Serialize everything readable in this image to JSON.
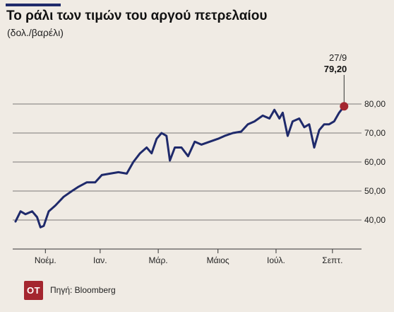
{
  "header": {
    "title": "Το ράλι των τιμών του αργού πετρελαίου",
    "subtitle": "(δολ./βαρέλι)"
  },
  "footer": {
    "logo": "ΟΤ",
    "source": "Πηγή: Bloomberg"
  },
  "colors": {
    "line": "#1f2a6b",
    "marker": "#a4262f",
    "grid": "#555555",
    "background": "#f0ebe4",
    "logo_bg": "#a4262f"
  },
  "chart_data": {
    "type": "line",
    "title": "Το ράλι των τιμών του αργού πετρελαίου",
    "ylabel": "(δολ./βαρέλι)",
    "ylim": [
      30,
      90
    ],
    "y_ticks": [
      40,
      50,
      60,
      70,
      80
    ],
    "y_tick_labels": [
      "40,00",
      "50,00",
      "60,00",
      "70,00",
      "80,00"
    ],
    "x_range": [
      0,
      1
    ],
    "x_ticks": [
      0.09,
      0.255,
      0.43,
      0.61,
      0.785,
      0.955
    ],
    "x_tick_labels": [
      "Νοέμ.",
      "Ιαν.",
      "Μάρ.",
      "Μάιος",
      "Ιούλ.",
      "Σεπτ."
    ],
    "grid": "horizontal",
    "annotation": {
      "date": "27/9",
      "value": "79,20",
      "y": 79.2
    },
    "series": [
      {
        "values": [
          [
            0.0,
            39.5
          ],
          [
            0.015,
            43
          ],
          [
            0.03,
            42
          ],
          [
            0.05,
            43
          ],
          [
            0.065,
            41
          ],
          [
            0.075,
            37.5
          ],
          [
            0.085,
            38
          ],
          [
            0.1,
            43
          ],
          [
            0.12,
            45
          ],
          [
            0.145,
            48
          ],
          [
            0.17,
            50
          ],
          [
            0.19,
            51.5
          ],
          [
            0.215,
            53
          ],
          [
            0.24,
            53
          ],
          [
            0.26,
            55.5
          ],
          [
            0.285,
            56
          ],
          [
            0.31,
            56.5
          ],
          [
            0.335,
            56
          ],
          [
            0.355,
            60
          ],
          [
            0.375,
            63
          ],
          [
            0.395,
            65
          ],
          [
            0.41,
            63
          ],
          [
            0.425,
            68
          ],
          [
            0.44,
            70
          ],
          [
            0.455,
            69
          ],
          [
            0.465,
            60.5
          ],
          [
            0.48,
            65
          ],
          [
            0.5,
            65
          ],
          [
            0.52,
            62
          ],
          [
            0.54,
            67
          ],
          [
            0.56,
            66
          ],
          [
            0.585,
            67
          ],
          [
            0.61,
            68
          ],
          [
            0.63,
            69
          ],
          [
            0.655,
            70
          ],
          [
            0.68,
            70.5
          ],
          [
            0.7,
            73
          ],
          [
            0.72,
            74
          ],
          [
            0.745,
            76
          ],
          [
            0.765,
            75
          ],
          [
            0.78,
            78
          ],
          [
            0.795,
            75
          ],
          [
            0.805,
            77
          ],
          [
            0.82,
            69
          ],
          [
            0.835,
            74
          ],
          [
            0.855,
            75
          ],
          [
            0.87,
            72
          ],
          [
            0.885,
            73
          ],
          [
            0.9,
            65
          ],
          [
            0.915,
            71
          ],
          [
            0.93,
            73
          ],
          [
            0.945,
            73
          ],
          [
            0.96,
            74
          ],
          [
            0.975,
            77
          ],
          [
            0.99,
            79.2
          ]
        ]
      }
    ]
  }
}
